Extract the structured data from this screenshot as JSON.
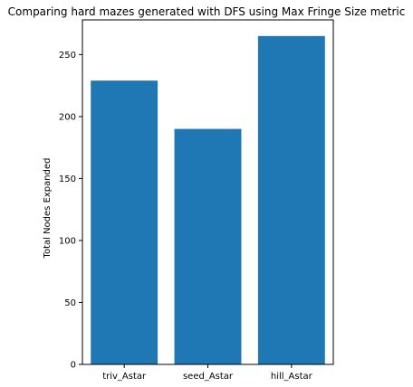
{
  "chart_data": {
    "type": "bar",
    "title": "Comparing hard mazes generated with DFS using Max Fringe Size metric",
    "xlabel": "",
    "ylabel": "Total Nodes Expanded",
    "categories": [
      "triv_Astar",
      "seed_Astar",
      "hill_Astar"
    ],
    "values": [
      229,
      190,
      265
    ],
    "ylim": [
      0,
      278
    ],
    "yticks": [
      0,
      50,
      100,
      150,
      200,
      250
    ],
    "bar_color": "#1f77b4",
    "grid": false,
    "legend": "none"
  }
}
